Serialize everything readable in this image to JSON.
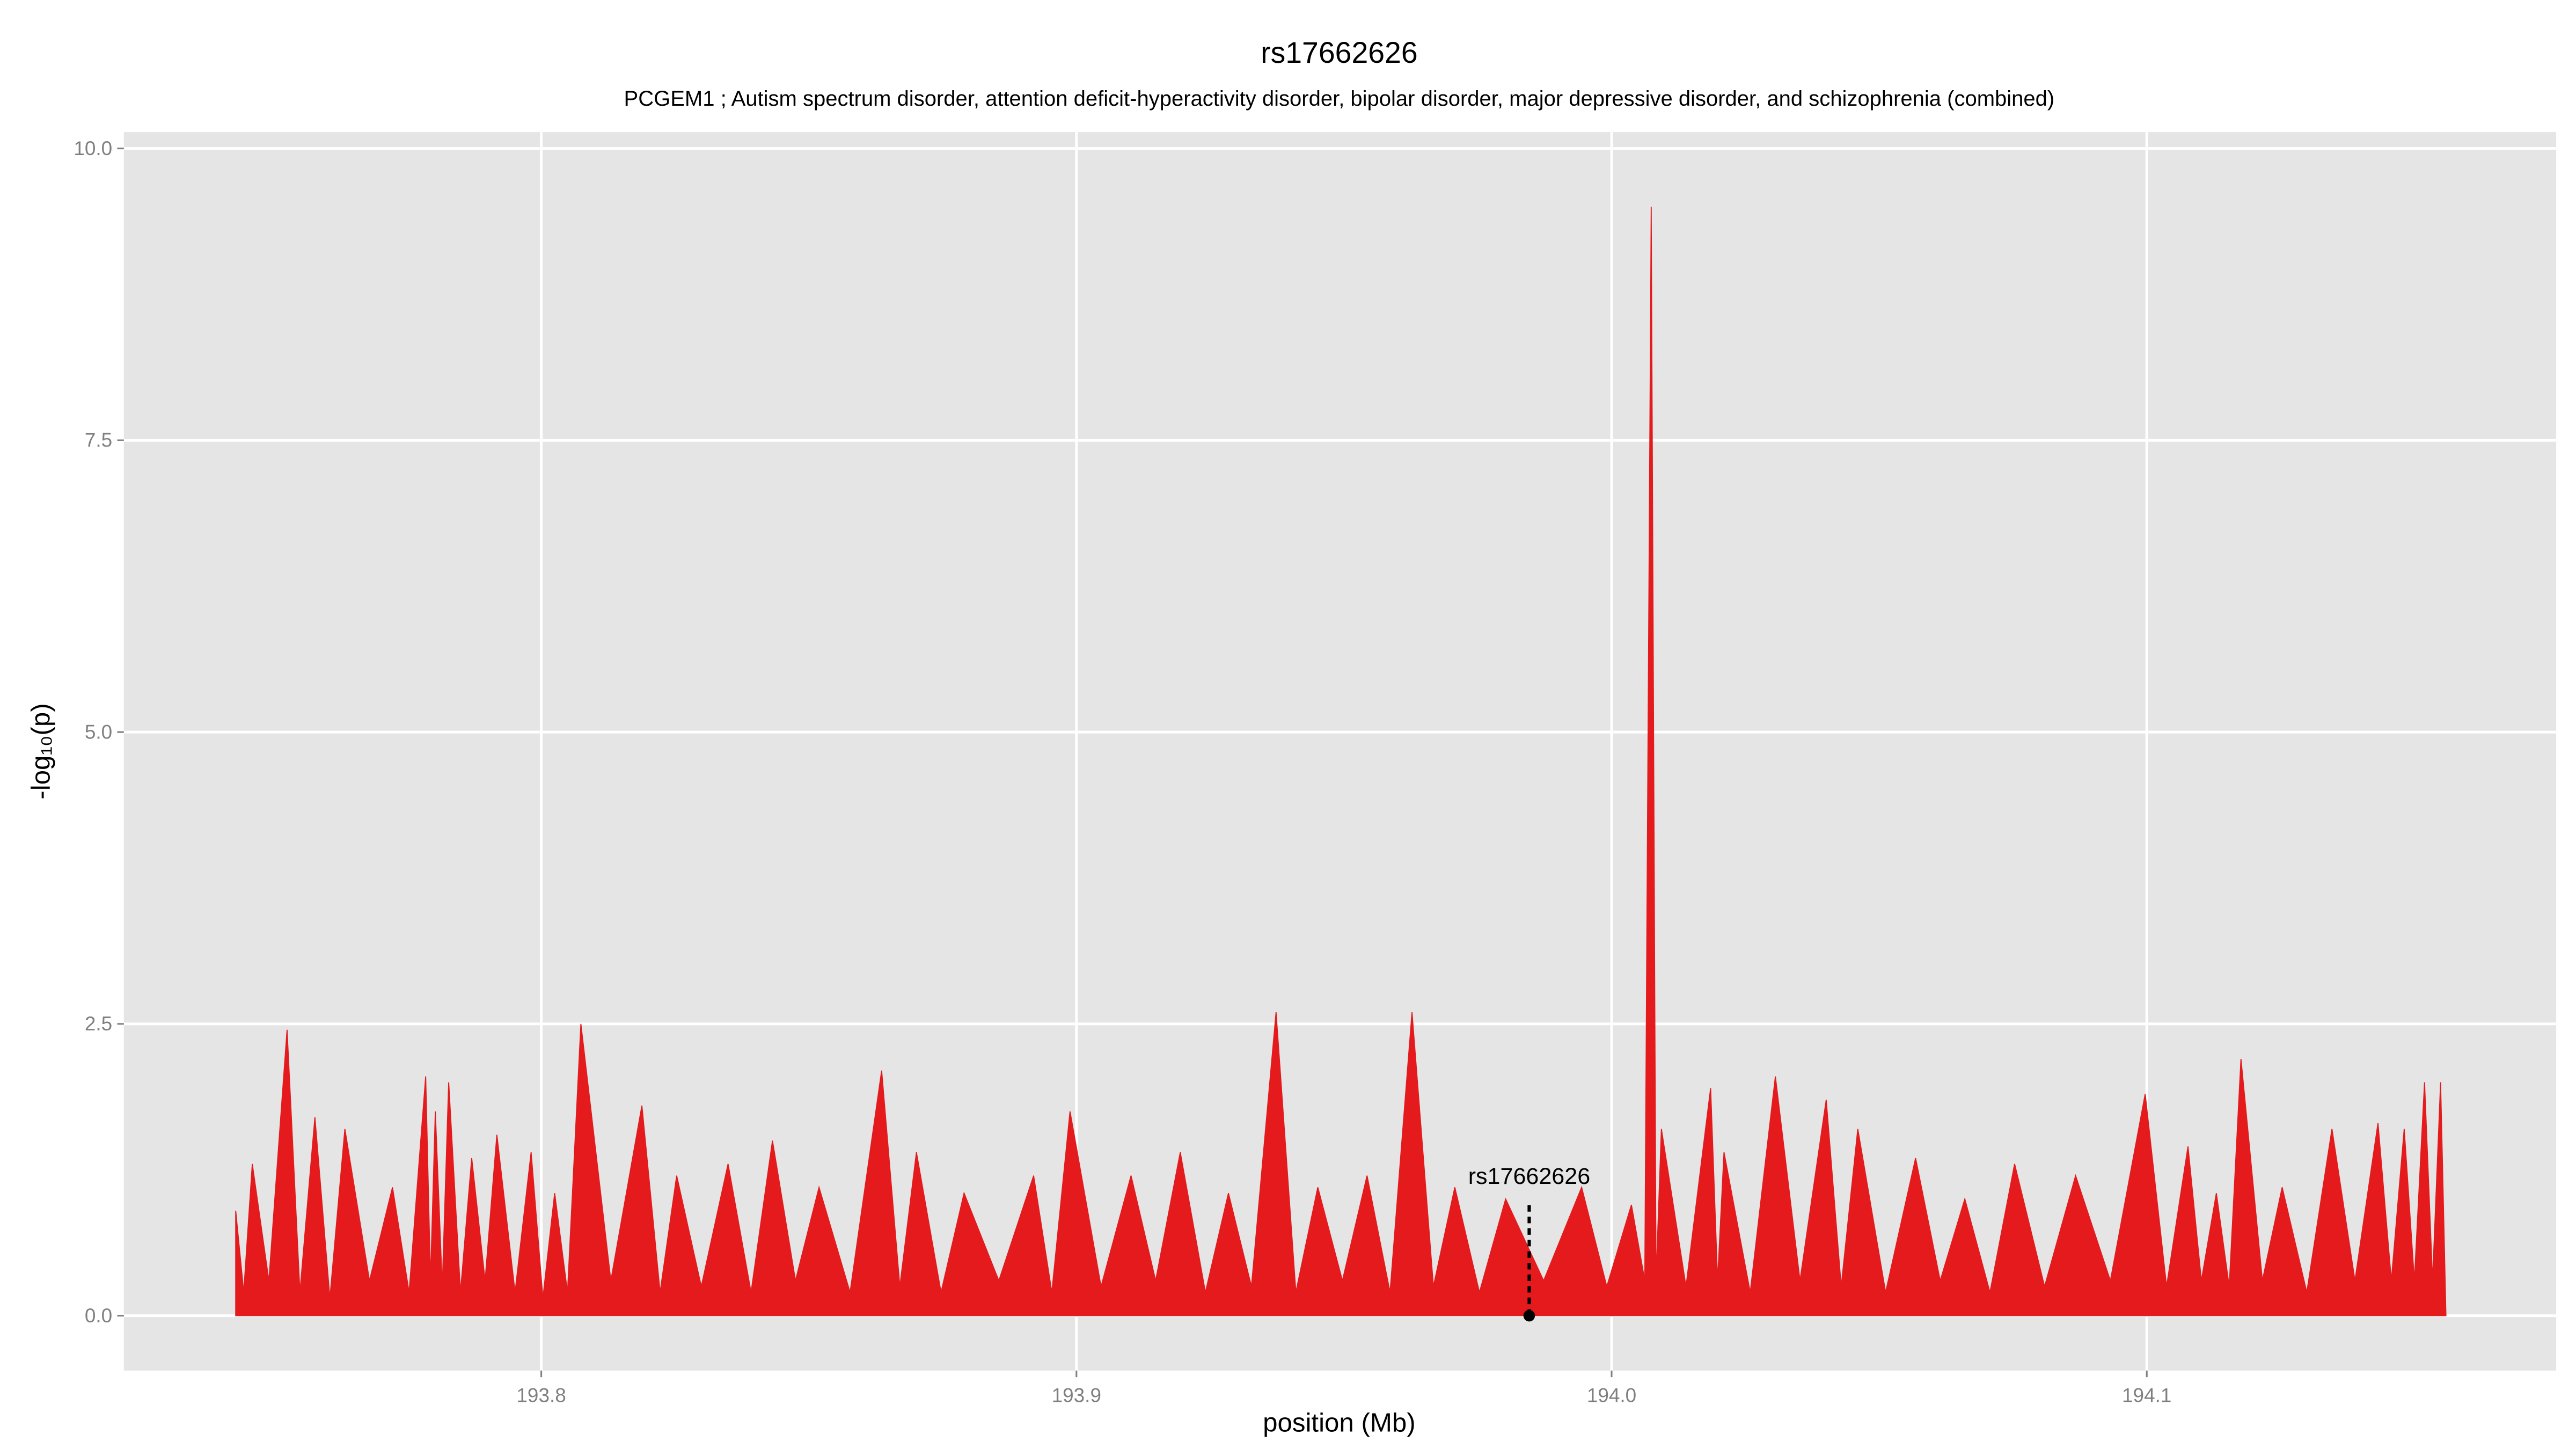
{
  "chart_data": {
    "type": "area",
    "title": "rs17662626",
    "subtitle": "PCGEM1 ; Autism spectrum disorder, attention deficit-hyperactivity disorder, bipolar disorder, major depressive disorder, and schizophrenia (combined)",
    "x_label": "position (Mb)",
    "y_label": "-log₁₀(p)",
    "xlim": [
      193.722,
      194.1765
    ],
    "ylim": [
      -0.47,
      10.14
    ],
    "xticks": [
      193.8,
      193.9,
      {
        "value": 194,
        "label": "194.0"
      },
      194.1
    ],
    "yticks": [
      {
        "value": 0,
        "label": "0.0"
      },
      2.5,
      {
        "value": 5,
        "label": "5.0"
      },
      7.5,
      {
        "value": 10,
        "label": "10.0"
      }
    ],
    "grid": true,
    "series": [
      {
        "color": "#e41a1c",
        "x": [
          193.7429,
          193.7444,
          193.746,
          193.7491,
          193.7525,
          193.7549,
          193.7577,
          193.7605,
          193.7633,
          193.7679,
          193.7722,
          193.7753,
          193.7784,
          193.7793,
          193.7802,
          193.7815,
          193.7827,
          193.7849,
          193.787,
          193.7895,
          193.7917,
          193.7951,
          193.7981,
          193.8003,
          193.8025,
          193.8049,
          193.8074,
          193.813,
          193.8188,
          193.8222,
          193.8253,
          193.8299,
          193.8349,
          193.8392,
          193.8432,
          193.8475,
          193.8519,
          193.8577,
          193.8636,
          193.867,
          193.8701,
          193.8747,
          193.879,
          193.8855,
          193.892,
          193.8954,
          193.8988,
          193.9046,
          193.9102,
          193.9148,
          193.9194,
          193.9241,
          193.9284,
          193.9327,
          193.9373,
          193.941,
          193.9451,
          193.9497,
          193.9543,
          193.9586,
          193.9627,
          193.9667,
          193.9707,
          193.9753,
          193.9802,
          193.9873,
          193.9944,
          193.9991,
          194.0037,
          194.0062,
          194.0074,
          194.0083,
          194.0093,
          194.0139,
          194.0185,
          194.0198,
          194.021,
          194.0259,
          194.0306,
          194.0352,
          194.0401,
          194.0429,
          194.046,
          194.0512,
          194.0568,
          194.0614,
          194.066,
          194.0707,
          194.0753,
          194.0809,
          194.0867,
          194.0932,
          194.0997,
          194.1037,
          194.1077,
          194.1102,
          194.113,
          194.1154,
          194.1176,
          194.1216,
          194.1253,
          194.1299,
          194.1346,
          194.1389,
          194.1432,
          194.1457,
          194.1481,
          194.15,
          194.1519,
          194.1534,
          194.1549,
          194.1559
        ],
        "values": [
          0.9,
          0.2,
          1.3,
          0.3,
          2.45,
          0.2,
          1.7,
          0.15,
          1.6,
          0.3,
          1.1,
          0.2,
          2.05,
          0.3,
          1.75,
          0.25,
          2.0,
          0.2,
          1.35,
          0.3,
          1.55,
          0.2,
          1.4,
          0.15,
          1.05,
          0.2,
          2.5,
          0.3,
          1.8,
          0.2,
          1.2,
          0.25,
          1.3,
          0.2,
          1.5,
          0.3,
          1.1,
          0.2,
          2.1,
          0.25,
          1.4,
          0.2,
          1.05,
          0.3,
          1.2,
          0.2,
          1.75,
          0.25,
          1.2,
          0.3,
          1.4,
          0.2,
          1.05,
          0.25,
          2.6,
          0.2,
          1.1,
          0.3,
          1.2,
          0.2,
          2.6,
          0.25,
          1.1,
          0.2,
          1.0,
          0.3,
          1.1,
          0.25,
          0.95,
          0.3,
          9.5,
          0.3,
          1.6,
          0.25,
          1.95,
          0.3,
          1.4,
          0.2,
          2.05,
          0.3,
          1.85,
          0.25,
          1.6,
          0.2,
          1.35,
          0.3,
          1.0,
          0.2,
          1.3,
          0.25,
          1.2,
          0.3,
          1.9,
          0.25,
          1.45,
          0.3,
          1.05,
          0.25,
          2.2,
          0.3,
          1.1,
          0.2,
          1.6,
          0.3,
          1.65,
          0.3,
          1.6,
          0.3,
          2.0,
          0.3,
          2.0,
          0
        ]
      }
    ],
    "annotation": {
      "label": "rs17662626",
      "x": 193.9846,
      "y": 0,
      "line_top": 0.96
    }
  }
}
